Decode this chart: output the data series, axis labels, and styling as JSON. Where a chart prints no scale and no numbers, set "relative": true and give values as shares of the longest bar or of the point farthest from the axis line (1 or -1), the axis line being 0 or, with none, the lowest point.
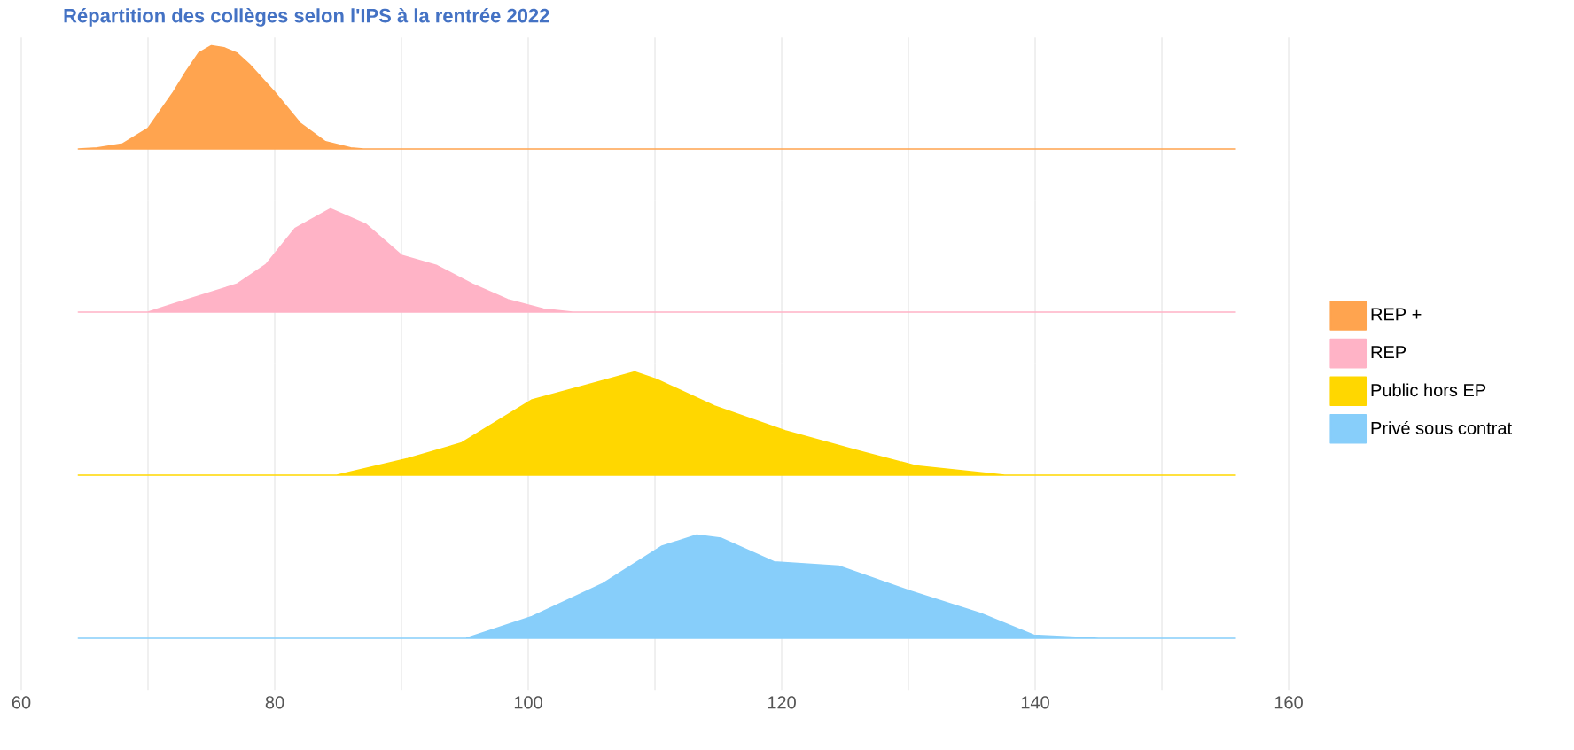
{
  "chart_data": [
    {
      "type": "area",
      "title": "Répartition des collèges selon l'IPS à la rentrée 2022",
      "relative": true,
      "xlim": [
        60,
        160
      ],
      "xticks": [
        60,
        {
          "value": 70,
          "label": null
        },
        80,
        {
          "value": 90,
          "label": null
        },
        100,
        {
          "value": 110,
          "label": null
        },
        120,
        {
          "value": 130,
          "label": null
        },
        140,
        {
          "value": 150,
          "label": null
        },
        160
      ],
      "grid": "x",
      "legend": "right",
      "tick_labels": false,
      "x": [
        64.5,
        66,
        68,
        70,
        72,
        73,
        74,
        75,
        76,
        77,
        78,
        80,
        82,
        84,
        86,
        87,
        155.8
      ],
      "series": [
        {
          "name": "REP +",
          "color": "#ffa44f",
          "values": [
            0,
            0.01,
            0.05,
            0.2,
            0.55,
            0.75,
            0.93,
            1,
            0.98,
            0.93,
            0.82,
            0.55,
            0.25,
            0.07,
            0.01,
            0,
            0
          ]
        }
      ]
    },
    {
      "type": "area",
      "relative": true,
      "xlim": [
        60,
        160
      ],
      "xticks": [
        60,
        {
          "value": 70,
          "label": null
        },
        80,
        {
          "value": 90,
          "label": null
        },
        100,
        {
          "value": 110,
          "label": null
        },
        120,
        {
          "value": 130,
          "label": null
        },
        140,
        {
          "value": 150,
          "label": null
        },
        160
      ],
      "grid": "x",
      "legend": "right",
      "tick_labels": false,
      "x": [
        64.5,
        70,
        72.3,
        77,
        79.3,
        81.6,
        84.4,
        87.2,
        90,
        92.8,
        95.6,
        98.4,
        101.2,
        103.5,
        155.8
      ],
      "series": [
        {
          "name": "REP",
          "color": "#ffb3c6",
          "values": [
            0,
            0,
            0.09,
            0.27,
            0.46,
            0.81,
            1,
            0.85,
            0.55,
            0.45,
            0.27,
            0.12,
            0.03,
            0,
            0
          ]
        }
      ]
    },
    {
      "type": "area",
      "relative": true,
      "xlim": [
        60,
        160
      ],
      "xticks": [
        60,
        {
          "value": 70,
          "label": null
        },
        80,
        {
          "value": 90,
          "label": null
        },
        100,
        {
          "value": 110,
          "label": null
        },
        120,
        {
          "value": 130,
          "label": null
        },
        140,
        {
          "value": 150,
          "label": null
        },
        160
      ],
      "grid": "x",
      "legend": "right",
      "tick_labels": false,
      "x": [
        64.5,
        84.9,
        90.5,
        94.7,
        100.3,
        104.5,
        108.4,
        110.1,
        114.7,
        120.3,
        125.9,
        130.6,
        137.6,
        155.8
      ],
      "series": [
        {
          "name": "Public hors EP",
          "color": "#ffd700",
          "values": [
            0,
            0,
            0.16,
            0.31,
            0.73,
            0.87,
            1,
            0.93,
            0.67,
            0.43,
            0.24,
            0.09,
            0,
            0
          ]
        }
      ]
    },
    {
      "type": "area",
      "relative": true,
      "xlim": [
        60,
        160
      ],
      "xticks": [
        60,
        {
          "value": 70,
          "label": null
        },
        80,
        {
          "value": 90,
          "label": null
        },
        100,
        {
          "value": 110,
          "label": null
        },
        120,
        {
          "value": 130,
          "label": null
        },
        140,
        {
          "value": 150,
          "label": null
        },
        160
      ],
      "grid": "x",
      "legend": "right",
      "tick_labels": "x",
      "x": [
        64.5,
        95.1,
        100.3,
        105.9,
        110.5,
        113.3,
        115.2,
        119.4,
        124.5,
        130.1,
        135.7,
        139.9,
        145,
        155.8
      ],
      "series": [
        {
          "name": "Privé sous contrat",
          "color": "#87cefa",
          "values": [
            0,
            0,
            0.21,
            0.53,
            0.89,
            1,
            0.97,
            0.74,
            0.7,
            0.46,
            0.24,
            0.03,
            0,
            0
          ]
        }
      ]
    }
  ]
}
